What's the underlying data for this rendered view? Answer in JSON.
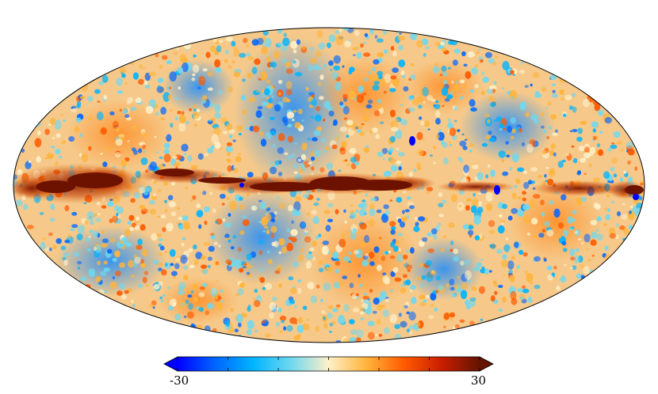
{
  "map": {
    "projection": "mollweide",
    "colormap": [
      "#0000ff",
      "#0066ff",
      "#00b4ff",
      "#6ed8f0",
      "#fff0c8",
      "#ffb43c",
      "#ff5a00",
      "#c81e00",
      "#641400"
    ],
    "galactic_plane_color": "#6e1200",
    "outline_color": "#000000"
  },
  "colorbar": {
    "min_label": "-30",
    "max_label": "30",
    "min": -30,
    "max": 30,
    "extend": "both"
  }
}
